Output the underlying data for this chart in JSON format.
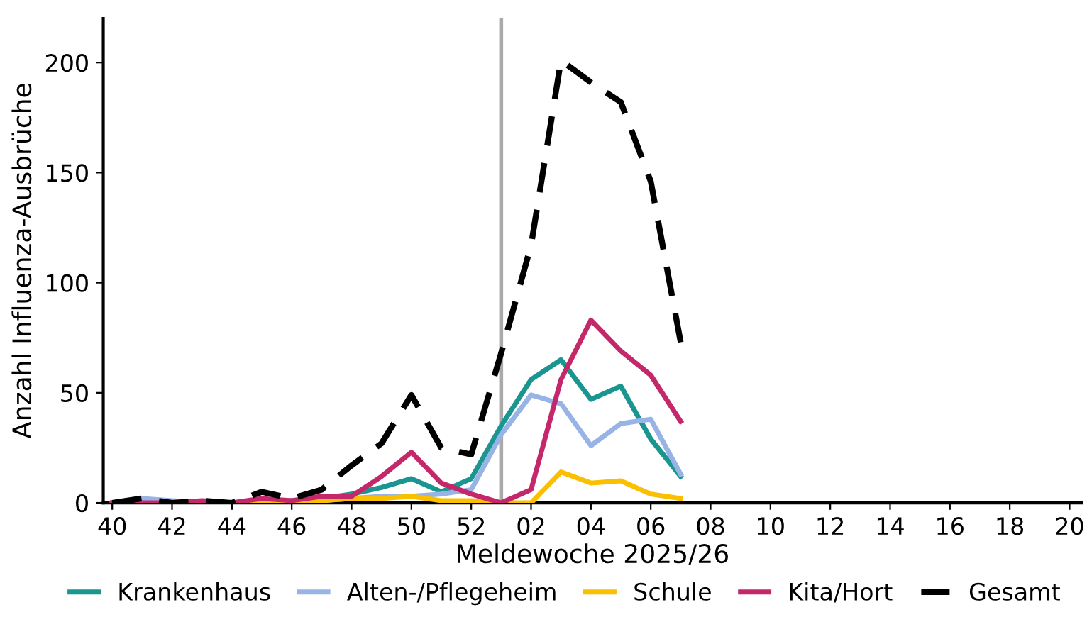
{
  "chart_data": {
    "type": "line",
    "xlabel": "Meldewoche 2025/26",
    "ylabel": "Anzahl Influenza-Ausbrüche",
    "categories": [
      "40",
      null,
      "42",
      null,
      "44",
      null,
      "46",
      null,
      "48",
      null,
      "50",
      null,
      "52",
      null,
      "02",
      null,
      "04",
      null,
      "06",
      null,
      "08",
      null,
      "10",
      null,
      "12",
      null,
      "14",
      null,
      "16",
      null,
      "18",
      null,
      "20"
    ],
    "series": [
      {
        "name": "Krankenhaus",
        "color": "#1b9590",
        "values": [
          null,
          null,
          null,
          null,
          null,
          null,
          1,
          2,
          4,
          7,
          11,
          5,
          11,
          35,
          56,
          65,
          47,
          53,
          29,
          12,
          null,
          null,
          null,
          null,
          null,
          null,
          null,
          null,
          null,
          null,
          null,
          null,
          null
        ]
      },
      {
        "name": "Alten-/Pflegeheim",
        "color": "#98b3e6",
        "values": [
          0,
          2,
          1,
          0,
          0,
          0,
          1,
          1,
          2,
          3,
          3,
          4,
          6,
          31,
          49,
          45,
          26,
          36,
          38,
          13,
          null,
          null,
          null,
          null,
          null,
          null,
          null,
          null,
          null,
          null,
          null,
          null,
          null
        ]
      },
      {
        "name": "Schule",
        "color": "#fac000",
        "values": [
          null,
          null,
          null,
          null,
          0,
          1,
          0,
          1,
          2,
          2,
          3,
          1,
          1,
          0,
          0,
          14,
          9,
          10,
          4,
          2,
          null,
          null,
          null,
          null,
          null,
          null,
          null,
          null,
          null,
          null,
          null,
          null,
          null
        ]
      },
      {
        "name": "Kita/Hort",
        "color": "#c4286b",
        "values": [
          0,
          0,
          0,
          1,
          0,
          2,
          1,
          3,
          3,
          12,
          23,
          9,
          4,
          0,
          6,
          56,
          83,
          69,
          58,
          37,
          null,
          null,
          null,
          null,
          null,
          null,
          null,
          null,
          null,
          null,
          null,
          null,
          null
        ]
      },
      {
        "name": "Gesamt",
        "color": "#000000",
        "line_style": "dashed",
        "values": [
          0,
          2,
          0,
          1,
          0,
          5,
          2,
          6,
          17,
          27,
          49,
          25,
          22,
          68,
          117,
          201,
          191,
          182,
          146,
          73,
          null,
          null,
          null,
          null,
          null,
          null,
          null,
          null,
          null,
          null,
          null,
          null,
          null
        ]
      }
    ],
    "ylim": [
      0,
      220
    ],
    "yticks": [
      0,
      50,
      100,
      150,
      200
    ],
    "legend": "bottom",
    "line_style": "solid",
    "marker": "none"
  }
}
